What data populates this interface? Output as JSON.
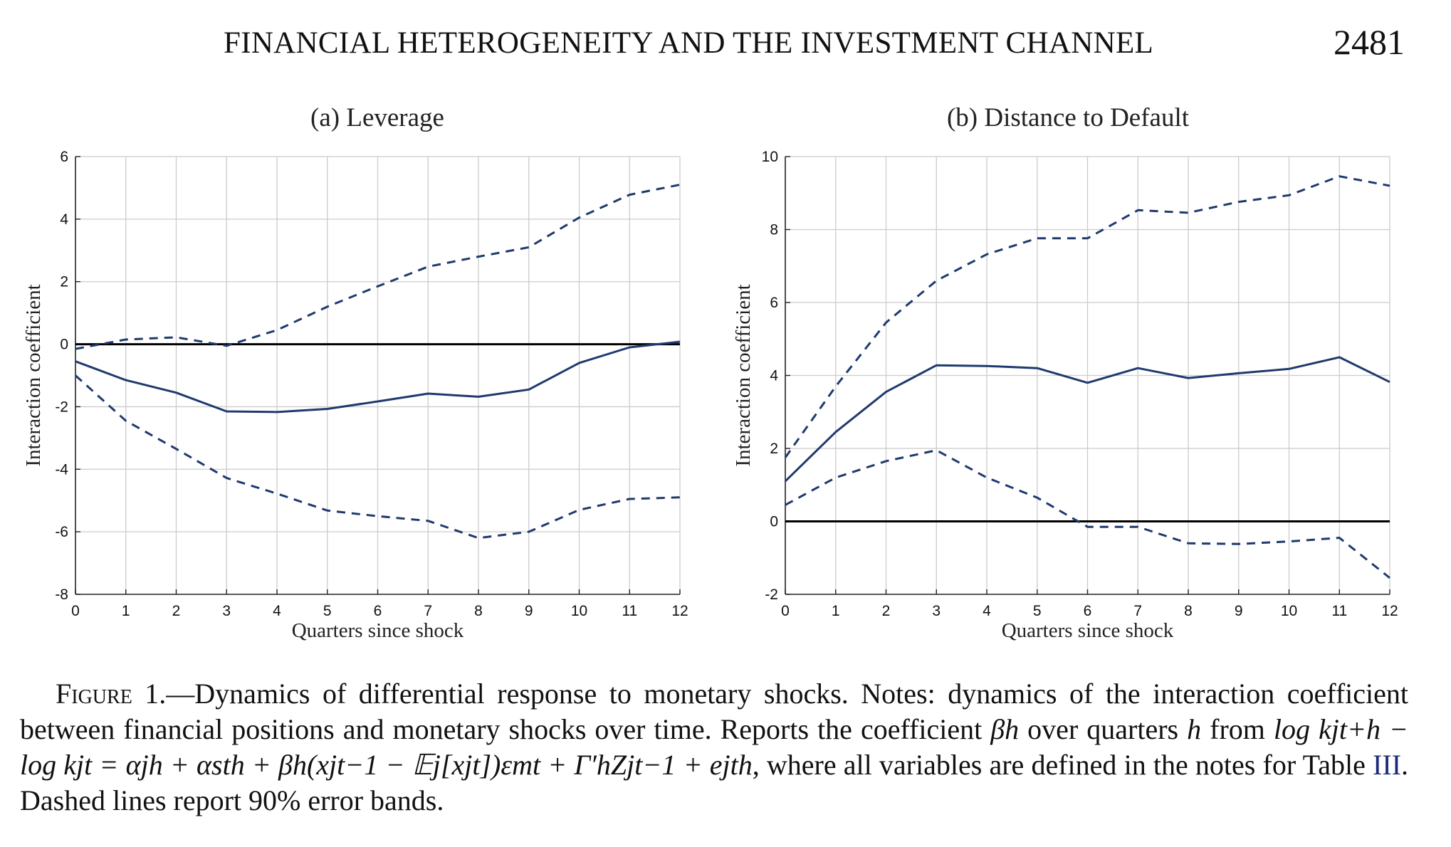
{
  "header": {
    "running_title": "FINANCIAL HETEROGENEITY AND THE INVESTMENT CHANNEL",
    "page_number": "2481"
  },
  "chart_data": [
    {
      "type": "line",
      "title": "(a) Leverage",
      "xlabel": "Quarters since shock",
      "ylabel": "Interaction coefficient",
      "x": [
        0,
        1,
        2,
        3,
        4,
        5,
        6,
        7,
        8,
        9,
        10,
        11,
        12
      ],
      "xlim": [
        0,
        12
      ],
      "ylim": [
        -8,
        6
      ],
      "yticks": [
        -8,
        -6,
        -4,
        -2,
        0,
        2,
        4,
        6
      ],
      "xticks": [
        0,
        1,
        2,
        3,
        4,
        5,
        6,
        7,
        8,
        9,
        10,
        11,
        12
      ],
      "grid": true,
      "zero_line": true,
      "series": [
        {
          "style": "solid",
          "values": [
            -0.55,
            -1.15,
            -1.55,
            -2.15,
            -2.17,
            -2.07,
            -1.83,
            -1.58,
            -1.68,
            -1.45,
            -0.6,
            -0.1,
            0.08
          ]
        },
        {
          "style": "dashed",
          "values": [
            -0.15,
            0.15,
            0.22,
            -0.05,
            0.45,
            1.2,
            1.85,
            2.48,
            2.8,
            3.1,
            4.05,
            4.78,
            5.1
          ]
        },
        {
          "style": "dashed",
          "values": [
            -1.0,
            -2.45,
            -3.35,
            -4.28,
            -4.78,
            -5.32,
            -5.5,
            -5.65,
            -6.2,
            -6.0,
            -5.3,
            -4.95,
            -4.9
          ]
        }
      ]
    },
    {
      "type": "line",
      "title": "(b) Distance to Default",
      "xlabel": "Quarters since shock",
      "ylabel": "Interaction coefficient",
      "x": [
        0,
        1,
        2,
        3,
        4,
        5,
        6,
        7,
        8,
        9,
        10,
        11,
        12
      ],
      "xlim": [
        0,
        12
      ],
      "ylim": [
        -2,
        10
      ],
      "yticks": [
        -2,
        0,
        2,
        4,
        6,
        8,
        10
      ],
      "xticks": [
        0,
        1,
        2,
        3,
        4,
        5,
        6,
        7,
        8,
        9,
        10,
        11,
        12
      ],
      "grid": true,
      "zero_line": true,
      "series": [
        {
          "style": "solid",
          "values": [
            1.1,
            2.45,
            3.55,
            4.28,
            4.26,
            4.2,
            3.8,
            4.2,
            3.93,
            4.06,
            4.18,
            4.5,
            3.82
          ]
        },
        {
          "style": "dashed",
          "values": [
            1.75,
            3.7,
            5.45,
            6.6,
            7.32,
            7.76,
            7.76,
            8.53,
            8.46,
            8.76,
            8.94,
            9.46,
            9.2
          ]
        },
        {
          "style": "dashed",
          "values": [
            0.45,
            1.2,
            1.65,
            1.95,
            1.2,
            0.65,
            -0.15,
            -0.15,
            -0.6,
            -0.62,
            -0.55,
            -0.45,
            -1.55
          ]
        }
      ]
    }
  ],
  "caption": {
    "figure_label": "Figure 1.",
    "text_1": "—Dynamics of differential response to monetary shocks. Notes: dynamics of the interaction coefficient between financial positions and monetary shocks over time. Reports the coefficient ",
    "math_beta": "βh",
    "text_2": " over quarters ",
    "math_h": "h",
    "text_3": " from ",
    "equation": "log kjt+h − log kjt = αjh + αsth + βh(xjt−1 − 𝔼j[xjt])εmt + Γ′hZjt−1 + ejth",
    "text_4": ", where all variables are defined in the notes for Table ",
    "table_ref": "III",
    "text_5": ". Dashed lines report 90% error bands."
  },
  "colors": {
    "series": "#1f3a6e",
    "zero_line": "#000000",
    "grid": "#cccccc",
    "table_ref": "#1a2a7a"
  }
}
